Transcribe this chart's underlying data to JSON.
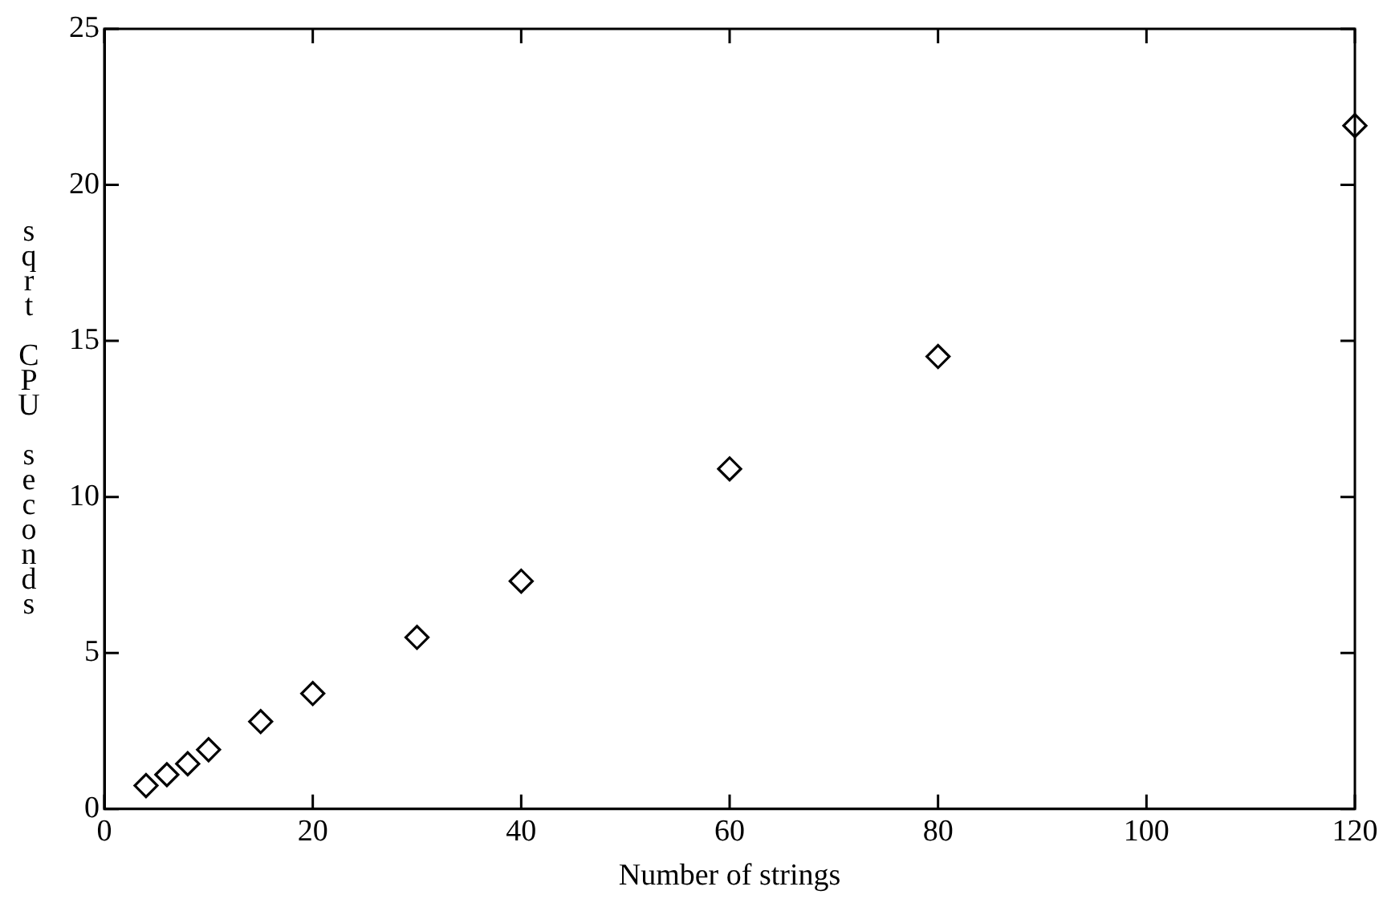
{
  "chart_data": {
    "type": "scatter",
    "xlabel": "Number of strings",
    "ylabel": "sqrt CPU seconds",
    "x": [
      4,
      6,
      8,
      10,
      15,
      20,
      30,
      40,
      60,
      80,
      120
    ],
    "series": [
      {
        "color": "#000000",
        "values": [
          0.75,
          1.1,
          1.45,
          1.9,
          2.8,
          3.7,
          5.5,
          7.3,
          10.9,
          14.5,
          21.9
        ]
      }
    ],
    "xlim": [
      0,
      120
    ],
    "xticks": [
      0,
      20,
      40,
      60,
      80,
      100,
      120
    ],
    "ylim": [
      0,
      25
    ],
    "yticks": [
      0,
      5,
      10,
      15,
      20,
      25
    ],
    "grid": false,
    "legend": false,
    "marker": "diamond"
  }
}
